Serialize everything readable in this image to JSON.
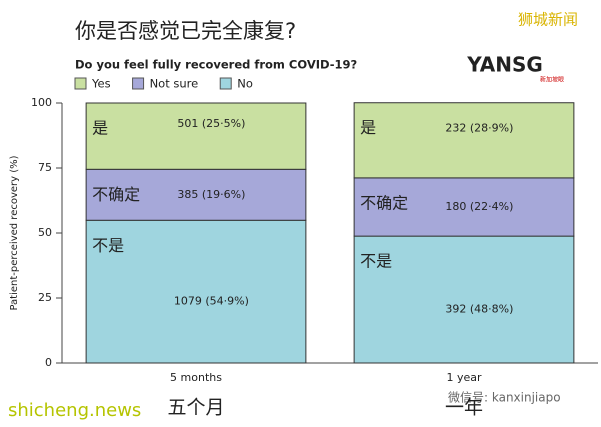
{
  "chart_data": {
    "type": "stacked_bar",
    "title": "你是否感觉已完全康复?",
    "subtitle": "Do you feel fully recovered from COVID-19?",
    "y_label": "Patient-perceived recovery (%)",
    "categories": [
      "5 months",
      "1 year"
    ],
    "categories_zh": [
      "五个月",
      "一年"
    ],
    "series": [
      {
        "name": "Yes",
        "label_zh": "是",
        "color": "#c9e0a1",
        "values": [
          25.5,
          28.9
        ],
        "value_labels": [
          "501 (25·5%)",
          "232 (28·9%)"
        ]
      },
      {
        "name": "Not sure",
        "label_zh": "不确定",
        "color": "#a6a8d9",
        "values": [
          19.6,
          22.4
        ],
        "value_labels": [
          "385 (19·6%)",
          "180 (22·4%)"
        ]
      },
      {
        "name": "No",
        "label_zh": "不是",
        "color": "#9fd5df",
        "values": [
          54.9,
          48.8
        ],
        "value_labels": [
          "1079 (54·9%)",
          "392 (48·8%)"
        ]
      }
    ],
    "ylim": [
      0,
      100
    ],
    "yticks": [
      0,
      25,
      50,
      75,
      100
    ],
    "watermarks": [
      "狮城新闻",
      "YANSG",
      "新加坡眼",
      "shicheng.news",
      "微信号: kanxinjiapo"
    ]
  }
}
